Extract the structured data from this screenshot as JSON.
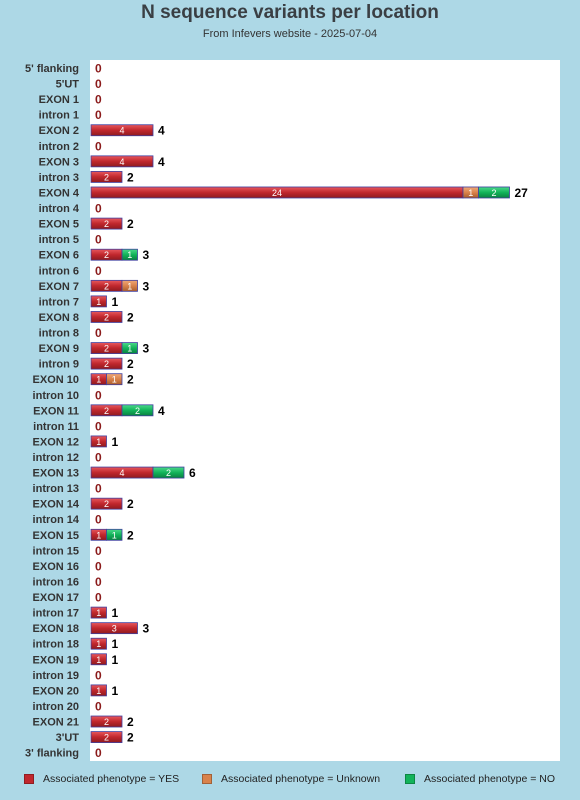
{
  "title": "N sequence variants per location",
  "subtitle": "From Infevers website - 2025-07-04",
  "colors": {
    "background": "#add8e6",
    "plot_bg": "#ffffff",
    "yes": "#c0272d",
    "unknown": "#d9824b",
    "no": "#12b35a",
    "bar_outline": "#3f3f9f"
  },
  "legend": [
    {
      "label": "Associated phenotype = YES",
      "color": "#c0272d"
    },
    {
      "label": "Associated phenotype = Unknown",
      "color": "#d9824b"
    },
    {
      "label": "Associated phenotype = NO",
      "color": "#12b35a"
    }
  ],
  "chart_data": {
    "type": "bar",
    "orientation": "horizontal",
    "stacked": true,
    "title": "N sequence variants per location",
    "subtitle": "From Infevers website - 2025-07-04",
    "xlabel": "",
    "ylabel": "",
    "xlim": [
      0,
      30
    ],
    "categories": [
      "5' flanking",
      "5'UT",
      "EXON 1",
      "intron 1",
      "EXON 2",
      "intron 2",
      "EXON 3",
      "intron 3",
      "EXON 4",
      "intron 4",
      "EXON 5",
      "intron 5",
      "EXON 6",
      "intron 6",
      "EXON 7",
      "intron 7",
      "EXON 8",
      "intron 8",
      "EXON 9",
      "intron 9",
      "EXON 10",
      "intron 10",
      "EXON 11",
      "intron 11",
      "EXON 12",
      "intron 12",
      "EXON 13",
      "intron 13",
      "EXON 14",
      "intron 14",
      "EXON 15",
      "intron 15",
      "EXON 16",
      "intron 16",
      "EXON 17",
      "intron 17",
      "EXON 18",
      "intron 18",
      "EXON 19",
      "intron 19",
      "EXON 20",
      "intron 20",
      "EXON 21",
      "3'UT",
      "3' flanking"
    ],
    "series": [
      {
        "name": "Associated phenotype = YES",
        "color": "#c0272d",
        "values": [
          0,
          0,
          0,
          0,
          4,
          0,
          4,
          2,
          24,
          0,
          2,
          0,
          2,
          0,
          2,
          1,
          2,
          0,
          2,
          2,
          1,
          0,
          2,
          0,
          1,
          0,
          4,
          0,
          2,
          0,
          1,
          0,
          0,
          0,
          0,
          1,
          3,
          1,
          1,
          0,
          1,
          0,
          2,
          2,
          0
        ]
      },
      {
        "name": "Associated phenotype = Unknown",
        "color": "#d9824b",
        "values": [
          0,
          0,
          0,
          0,
          0,
          0,
          0,
          0,
          1,
          0,
          0,
          0,
          0,
          0,
          1,
          0,
          0,
          0,
          0,
          0,
          1,
          0,
          0,
          0,
          0,
          0,
          0,
          0,
          0,
          0,
          0,
          0,
          0,
          0,
          0,
          0,
          0,
          0,
          0,
          0,
          0,
          0,
          0,
          0,
          0
        ]
      },
      {
        "name": "Associated phenotype = NO",
        "color": "#12b35a",
        "values": [
          0,
          0,
          0,
          0,
          0,
          0,
          0,
          0,
          2,
          0,
          0,
          0,
          1,
          0,
          0,
          0,
          0,
          0,
          1,
          0,
          0,
          0,
          2,
          0,
          0,
          0,
          2,
          0,
          0,
          0,
          1,
          0,
          0,
          0,
          0,
          0,
          0,
          0,
          0,
          0,
          0,
          0,
          0,
          0,
          0
        ]
      }
    ],
    "totals": [
      0,
      0,
      0,
      0,
      4,
      0,
      4,
      2,
      27,
      0,
      2,
      0,
      3,
      0,
      3,
      1,
      2,
      0,
      3,
      2,
      2,
      0,
      4,
      0,
      1,
      0,
      6,
      0,
      2,
      0,
      2,
      0,
      0,
      0,
      0,
      1,
      3,
      1,
      1,
      0,
      1,
      0,
      2,
      2,
      0
    ],
    "grid": false,
    "legend_position": "bottom"
  }
}
